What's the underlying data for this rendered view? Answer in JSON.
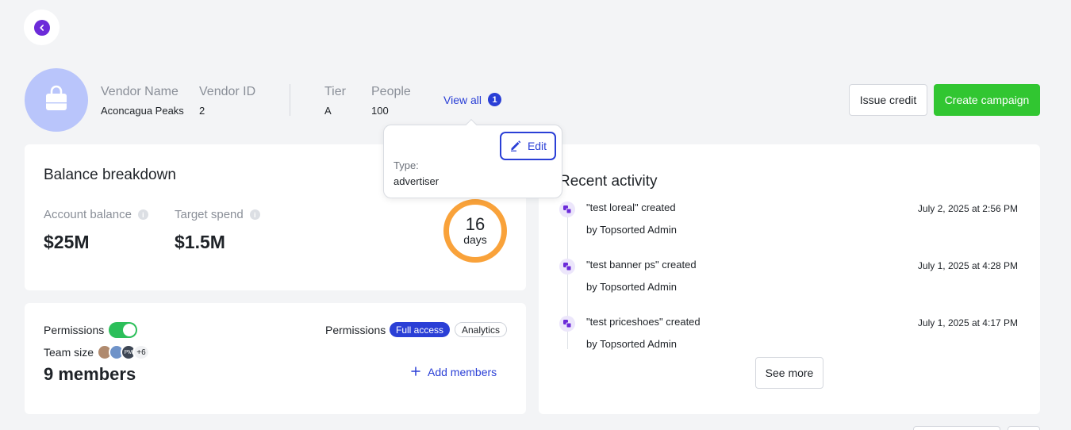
{
  "vendor": {
    "name_label": "Vendor Name",
    "name_value": "Aconcagua Peaks",
    "id_label": "Vendor ID",
    "id_value": "2",
    "tier_label": "Tier",
    "tier_value": "A",
    "people_label": "People",
    "people_value": "100",
    "view_all_label": "View all",
    "view_all_count": "1"
  },
  "actions": {
    "issue_credit": "Issue credit",
    "create_campaign": "Create campaign"
  },
  "popover": {
    "edit_label": "Edit",
    "type_label": "Type:",
    "type_value": "advertiser"
  },
  "balance": {
    "title": "Balance breakdown",
    "account_balance_label": "Account balance",
    "account_balance_value": "$25M",
    "target_spend_label": "Target spend",
    "target_spend_value": "$1.5M",
    "days_number": "16",
    "days_unit": "days"
  },
  "permissions": {
    "toggle_label": "Permissions",
    "toggle_on": true,
    "right_label": "Permissions",
    "full_access": "Full access",
    "analytics": "Analytics",
    "team_size_label": "Team size",
    "avatar_initials": "PM",
    "avatar_more": "+6",
    "members": "9 members",
    "add_members": "Add members"
  },
  "activity": {
    "title": "Recent activity",
    "items": [
      {
        "title": "\"test loreal\" created",
        "by": "by Topsorted Admin",
        "date": "July 2, 2025 at 2:56 PM"
      },
      {
        "title": "\"test banner ps\" created",
        "by": "by Topsorted Admin",
        "date": "July 1, 2025 at 4:28 PM"
      },
      {
        "title": "\"test priceshoes\" created",
        "by": "by Topsorted Admin",
        "date": "July 1, 2025 at 4:17 PM"
      }
    ],
    "see_more": "See more"
  },
  "colors": {
    "accent_blue": "#2a3fd6",
    "purple": "#6c2bd9",
    "green": "#31c631",
    "orange_ring": "#f9a23a",
    "avatar_bg": "#b9c5fb"
  }
}
